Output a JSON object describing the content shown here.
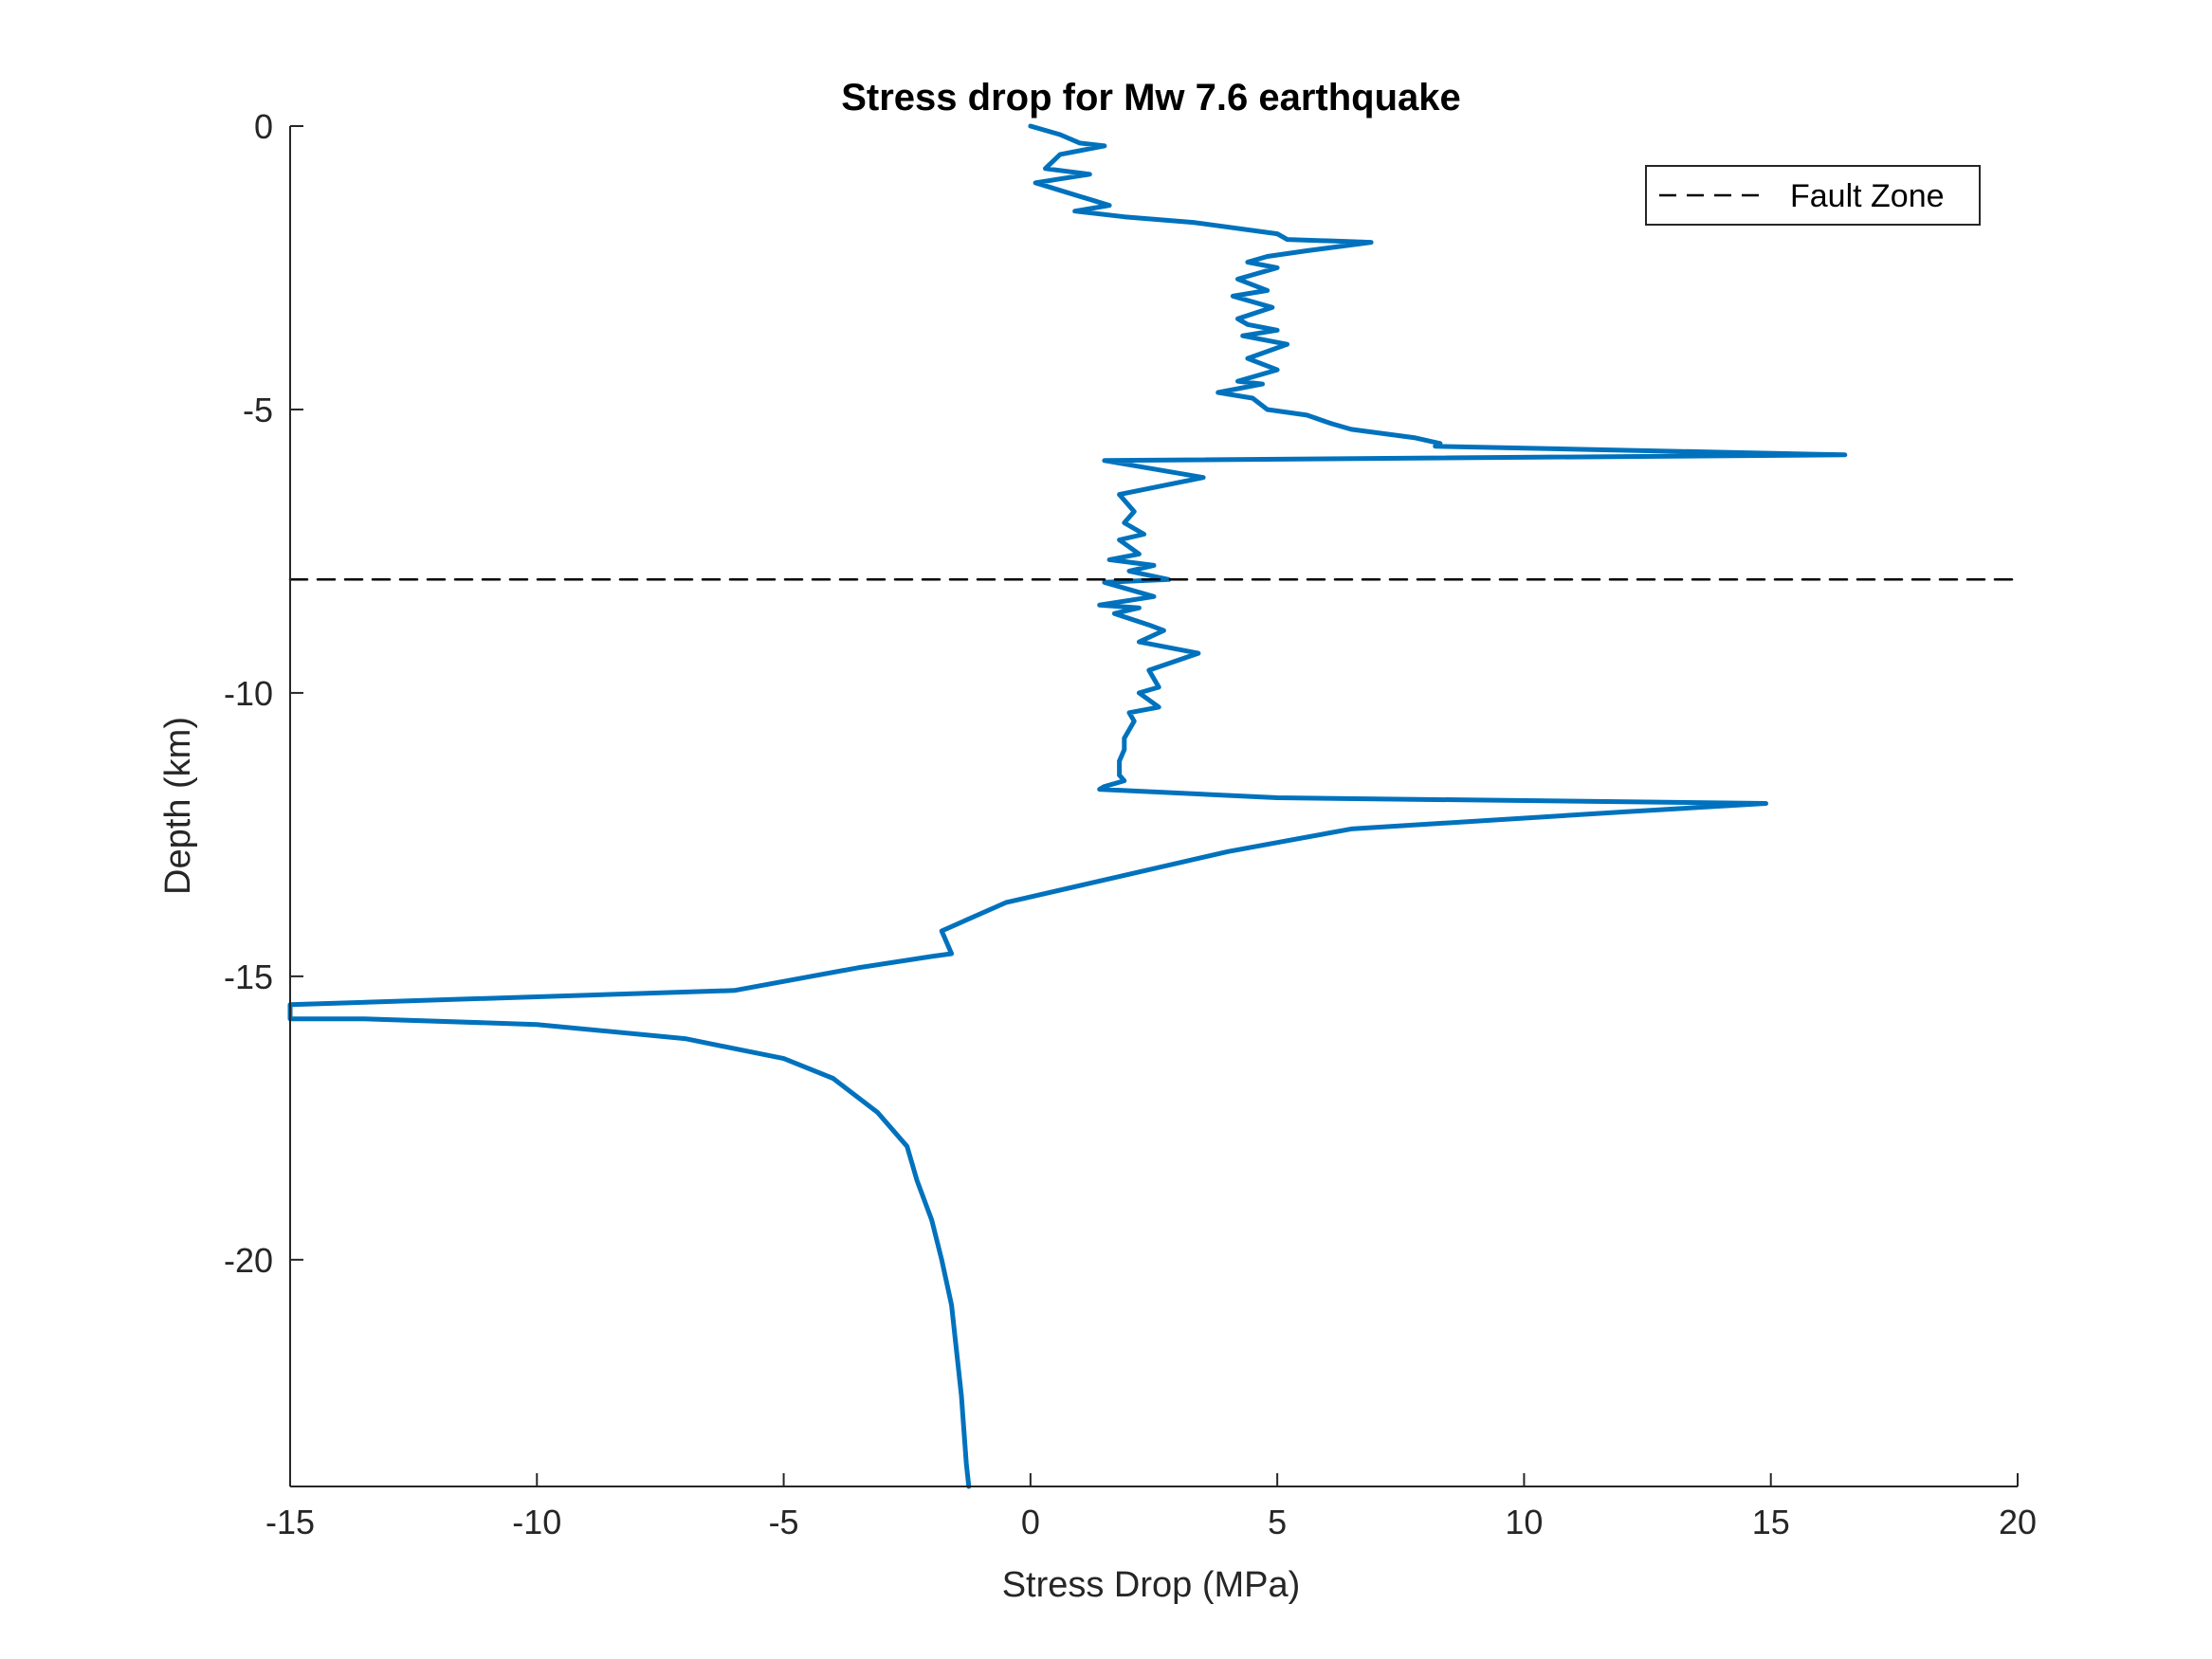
{
  "chart_data": {
    "type": "line",
    "title": "Stress drop for Mw 7.6 earthquake",
    "xlabel": "Stress Drop (MPa)",
    "ylabel": "Depth (km)",
    "xlim": [
      -15,
      20
    ],
    "ylim": [
      -24,
      0
    ],
    "xticks": [
      -15,
      -10,
      -5,
      0,
      5,
      10,
      15,
      20
    ],
    "xtick_labels": [
      "-15",
      "-10",
      "-5",
      "0",
      "5",
      "10",
      "15",
      "20"
    ],
    "yticks": [
      0,
      -5,
      -10,
      -15,
      -20
    ],
    "ytick_labels": [
      "0",
      "-5",
      "-10",
      "-15",
      "-20"
    ],
    "grid": false,
    "legend": {
      "placement": "top-right",
      "entries": [
        "Fault Zone"
      ]
    },
    "series": [
      {
        "color": "#0072BD",
        "style": "solid",
        "x": [
          0,
          0.6,
          1.0,
          1.5,
          0.6,
          0.3,
          1.2,
          0.1,
          1.6,
          0.9,
          1.9,
          3.3,
          5.0,
          5.2,
          6.9,
          5.6,
          4.8,
          4.4,
          5.0,
          4.2,
          4.8,
          4.1,
          4.9,
          4.2,
          4.4,
          5.0,
          4.3,
          5.2,
          4.4,
          5.0,
          4.2,
          4.7,
          3.8,
          4.5,
          4.8,
          5.6,
          6.1,
          6.5,
          7.8,
          8.3,
          8.2,
          16.5,
          1.5,
          3.5,
          1.8,
          2.1,
          1.9,
          2.3,
          1.8,
          2.2,
          1.6,
          2.5,
          2.0,
          2.8,
          1.5,
          2.5,
          1.4,
          2.2,
          1.7,
          2.4,
          2.7,
          2.2,
          3.4,
          2.4,
          2.6,
          2.2,
          2.6,
          2.0,
          2.1,
          2.0,
          1.9,
          1.9,
          1.8,
          1.8,
          1.9,
          1.5,
          1.4,
          5.0,
          14.9,
          12.0,
          6.5,
          4.0,
          1.5,
          -0.5,
          -1.8,
          -1.6,
          -2.0,
          -3.5,
          -6.0,
          -15,
          -15,
          -13.5,
          -10,
          -7,
          -5,
          -4,
          -3.1,
          -2.5,
          -2.3,
          -2.0,
          -1.8,
          -1.6,
          -1.5,
          -1.4,
          -1.35,
          -1.3,
          -1.25
        ],
        "y": [
          0,
          -0.15,
          -0.3,
          -0.35,
          -0.5,
          -0.75,
          -0.85,
          -1.0,
          -1.4,
          -1.5,
          -1.6,
          -1.7,
          -1.9,
          -2.0,
          -2.05,
          -2.2,
          -2.3,
          -2.4,
          -2.5,
          -2.7,
          -2.9,
          -3.0,
          -3.2,
          -3.4,
          -3.5,
          -3.6,
          -3.7,
          -3.85,
          -4.1,
          -4.3,
          -4.5,
          -4.55,
          -4.7,
          -4.8,
          -5.0,
          -5.1,
          -5.25,
          -5.35,
          -5.5,
          -5.6,
          -5.65,
          -5.8,
          -5.9,
          -6.2,
          -6.5,
          -6.8,
          -7.0,
          -7.2,
          -7.3,
          -7.55,
          -7.65,
          -7.75,
          -7.85,
          -8.0,
          -8.05,
          -8.3,
          -8.45,
          -8.5,
          -8.6,
          -8.8,
          -8.9,
          -9.1,
          -9.3,
          -9.6,
          -9.9,
          -10.0,
          -10.25,
          -10.35,
          -10.5,
          -10.65,
          -10.8,
          -11.0,
          -11.2,
          -11.45,
          -11.55,
          -11.65,
          -11.7,
          -11.85,
          -11.95,
          -12.1,
          -12.4,
          -12.8,
          -13.3,
          -13.7,
          -14.2,
          -14.6,
          -14.65,
          -14.85,
          -15.25,
          -15.5,
          -15.75,
          -15.75,
          -15.85,
          -16.1,
          -16.45,
          -16.8,
          -17.4,
          -18.0,
          -18.6,
          -19.3,
          -20.0,
          -20.8,
          -21.6,
          -22.4,
          -23.0,
          -23.6,
          -24.0
        ]
      },
      {
        "name": "Fault Zone",
        "color": "#000000",
        "style": "dashed",
        "x": [
          -15,
          20
        ],
        "y": [
          -8,
          -8
        ]
      }
    ]
  }
}
